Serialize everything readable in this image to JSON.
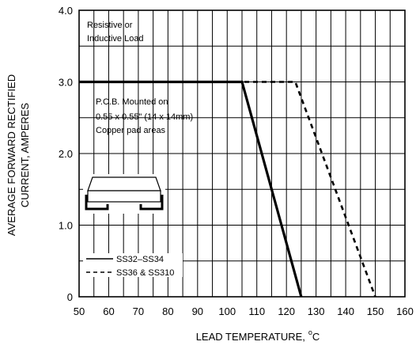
{
  "chart_data": {
    "type": "line",
    "xlabel": "LEAD TEMPERATURE,",
    "xlabel_unit_sup": "o",
    "xlabel_unit": "C",
    "ylabel_lines": [
      "AVERAGE FORWARD RECTIFIED",
      "CURRENT, AMPERES"
    ],
    "xlim": [
      50,
      160
    ],
    "ylim": [
      0,
      4
    ],
    "x_ticks": [
      "50",
      "60",
      "70",
      "80",
      "90",
      "100",
      "110",
      "120",
      "130",
      "140",
      "150",
      "160"
    ],
    "y_ticks": [
      "0",
      "1.0",
      "2.0",
      "3.0",
      "4.0"
    ],
    "grid": true,
    "series": [
      {
        "name": "SS32–SS34",
        "style": "solid",
        "x": [
          50,
          105,
          125
        ],
        "y": [
          3.0,
          3.0,
          0
        ]
      },
      {
        "name": "SS36 & SS310",
        "style": "dashed",
        "x": [
          50,
          123,
          150
        ],
        "y": [
          3.0,
          3.0,
          0
        ]
      }
    ],
    "annotations": {
      "load": [
        "Resistive or",
        "Inductive Load"
      ],
      "pcb": [
        "P.C.B. Mounted on",
        "0.55 x 0.55\" (14 x 14mm)",
        "Copper pad areas"
      ]
    },
    "legend_position": "bottom-left"
  }
}
